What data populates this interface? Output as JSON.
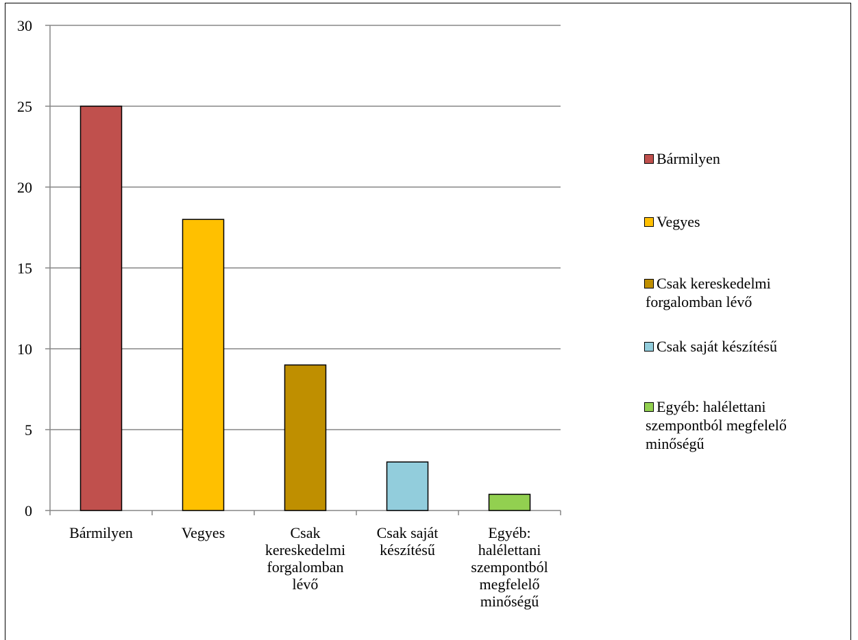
{
  "chart_data": {
    "type": "bar",
    "categories": [
      "Bármilyen",
      "Vegyes",
      "Csak kereskedelmi forgalomban lévő",
      "Csak saját készítésű",
      "Egyéb: halélettani szempontból megfelelő minőségű"
    ],
    "category_label_lines": [
      [
        "Bármilyen"
      ],
      [
        "Vegyes"
      ],
      [
        "Csak",
        "kereskedelmi",
        "forgalomban",
        "lévő"
      ],
      [
        "Csak saját",
        "készítésű"
      ],
      [
        "Egyéb:",
        "halélettani",
        "szempontból",
        "megfelelő",
        "minőségű"
      ]
    ],
    "values": [
      25,
      18,
      9,
      3,
      1
    ],
    "colors": [
      "#C0504D",
      "#FFC000",
      "#BF8F00",
      "#92CDDC",
      "#92D050"
    ],
    "ylim": [
      0,
      30
    ],
    "yticks": [
      0,
      5,
      10,
      15,
      20,
      25,
      30
    ],
    "grid": true,
    "legend_position": "right",
    "title": "",
    "xlabel": "",
    "ylabel": ""
  },
  "legend": {
    "items": [
      {
        "lines": [
          "Bármilyen"
        ],
        "color": "#C0504D"
      },
      {
        "lines": [
          "Vegyes"
        ],
        "color": "#FFC000"
      },
      {
        "lines": [
          "Csak kereskedelmi",
          "forgalomban lévő"
        ],
        "color": "#BF8F00"
      },
      {
        "lines": [
          "Csak saját készítésű"
        ],
        "color": "#92CDDC"
      },
      {
        "lines": [
          "Egyéb: halélettani",
          "szempontból megfelelő",
          "minőségű"
        ],
        "color": "#92D050"
      }
    ]
  }
}
